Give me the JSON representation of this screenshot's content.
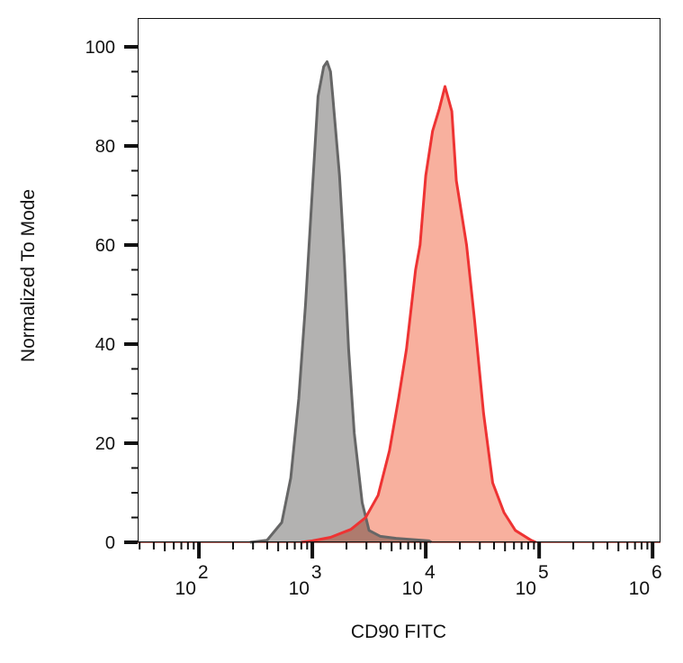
{
  "chart_data": {
    "type": "area",
    "title": "",
    "xlabel": "CD90 FITC",
    "ylabel": "Normalized To Mode",
    "x_scale": "log",
    "xlim_log10": [
      1.46,
      6.07
    ],
    "ylim": [
      0,
      100
    ],
    "x_tick_labels": [
      {
        "base": "10",
        "exp": "2",
        "log10": 2
      },
      {
        "base": "10",
        "exp": "3",
        "log10": 3
      },
      {
        "base": "10",
        "exp": "4",
        "log10": 4
      },
      {
        "base": "10",
        "exp": "5",
        "log10": 5
      },
      {
        "base": "10",
        "exp": "6",
        "log10": 6
      }
    ],
    "y_ticks": [
      0,
      20,
      40,
      60,
      80,
      100
    ],
    "grid": false,
    "legend": "none",
    "series": [
      {
        "id": "isotype",
        "fill": "#b3b2b1",
        "stroke": "#666666",
        "log10_x": [
          2.45,
          2.6,
          2.73,
          2.81,
          2.88,
          2.94,
          3.0,
          3.05,
          3.1,
          3.13,
          3.16,
          3.18,
          3.24,
          3.28,
          3.32,
          3.37,
          3.44,
          3.5,
          3.6,
          3.74,
          4.03,
          4.05
        ],
        "y": [
          0,
          0.4,
          4,
          13,
          29,
          48,
          71,
          90,
          96,
          97,
          95,
          90,
          74,
          58,
          39,
          22,
          8,
          2.4,
          1.2,
          0.8,
          0.3,
          0
        ]
      },
      {
        "id": "cd90",
        "fill": "#f8b09e",
        "stroke": "#ee3333",
        "log10_x": [
          2.9,
          3.0,
          3.16,
          3.34,
          3.47,
          3.58,
          3.68,
          3.76,
          3.83,
          3.91,
          3.95,
          4.0,
          4.06,
          4.12,
          4.17,
          4.23,
          4.27,
          4.36,
          4.43,
          4.51,
          4.59,
          4.69,
          4.79,
          4.93,
          4.97
        ],
        "y": [
          0,
          0.3,
          1,
          2.6,
          5,
          9.5,
          18.5,
          29,
          39,
          55,
          60,
          74,
          83,
          87.5,
          92,
          87,
          73,
          60,
          45,
          26,
          12,
          6,
          2.4,
          0.4,
          0
        ]
      }
    ]
  }
}
